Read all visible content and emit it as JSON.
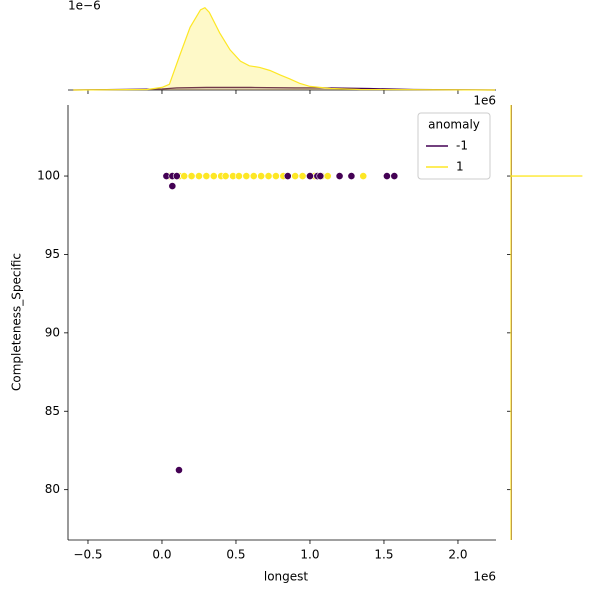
{
  "chart_data": {
    "type": "scatter",
    "xlabel": "longest",
    "ylabel": "Completeness_Specific",
    "x_offset_label": "1e6",
    "top_offset_label": "1e−6",
    "xlim": [
      -0.635,
      2.257
    ],
    "ylim": [
      76.79,
      104.53
    ],
    "xticks": [
      {
        "value": -0.5,
        "label": "−0.5"
      },
      {
        "value": 0,
        "label": "0.0"
      },
      {
        "value": 0.5,
        "label": "0.5"
      },
      {
        "value": 1,
        "label": "1.0"
      },
      {
        "value": 1.5,
        "label": "1.5"
      },
      {
        "value": 2,
        "label": "2.0"
      }
    ],
    "yticks": [
      80,
      85,
      90,
      95,
      100
    ],
    "legend_title": "anomaly",
    "legend_position": "upper right",
    "series": [
      {
        "name": "-1",
        "color": "#440154",
        "x": [
          0.03,
          0.07,
          0.1,
          0.85,
          1.0,
          1.05,
          1.07,
          1.2,
          1.28,
          1.52,
          1.57,
          0.07,
          0.115
        ],
        "values": [
          100,
          100,
          100,
          100,
          100,
          100,
          100,
          100,
          100,
          100,
          100,
          99.36,
          81.25
        ]
      },
      {
        "name": "1",
        "color": "#fde725",
        "x": [
          0.05,
          0.08,
          0.12,
          0.15,
          0.2,
          0.25,
          0.3,
          0.35,
          0.4,
          0.43,
          0.48,
          0.52,
          0.57,
          0.62,
          0.67,
          0.72,
          0.77,
          0.82,
          0.9,
          0.95,
          1.03,
          1.08,
          1.12,
          1.36
        ],
        "values": [
          100,
          100,
          100,
          100,
          100,
          100,
          100,
          100,
          100,
          100,
          100,
          100,
          100,
          100,
          100,
          100,
          100,
          100,
          100,
          100,
          100,
          100,
          100,
          100
        ]
      }
    ],
    "top_density": {
      "ylim": [
        0,
        1.75
      ],
      "series": [
        {
          "name": "-1",
          "color": "#440154",
          "x": [
            -0.6,
            0,
            0.1,
            0.3,
            0.6,
            0.9,
            1.1,
            1.4,
            1.7,
            2.25
          ],
          "values": [
            0,
            0.02,
            0.04,
            0.05,
            0.05,
            0.04,
            0.04,
            0.03,
            0.01,
            0
          ]
        },
        {
          "name": "1",
          "color": "#fde725",
          "x": [
            -0.6,
            -0.1,
            0,
            0.05,
            0.12,
            0.19,
            0.26,
            0.29,
            0.32,
            0.39,
            0.46,
            0.53,
            0.59,
            0.66,
            0.73,
            0.8,
            0.86,
            0.93,
            1.0,
            1.14,
            1.34,
            2.25
          ],
          "values": [
            0,
            0.01,
            0.05,
            0.11,
            0.67,
            1.22,
            1.56,
            1.6,
            1.51,
            1.11,
            0.78,
            0.56,
            0.47,
            0.44,
            0.38,
            0.29,
            0.22,
            0.13,
            0.07,
            0.03,
            0.01,
            0
          ]
        }
      ]
    },
    "right_density": {
      "xlim": [
        0,
        1.0
      ],
      "series": [
        {
          "name": "-1",
          "color": "#440154",
          "y": [
            76.79,
            81.25,
            99.36,
            100,
            104.53
          ],
          "values": [
            0.004,
            0.004,
            0.004,
            0.004,
            0.004
          ]
        },
        {
          "name": "1",
          "color": "#fde725",
          "y": [
            76.79,
            99.99,
            100,
            100.01,
            104.53
          ],
          "values": [
            0,
            0,
            0.84,
            0,
            0
          ]
        }
      ]
    }
  }
}
